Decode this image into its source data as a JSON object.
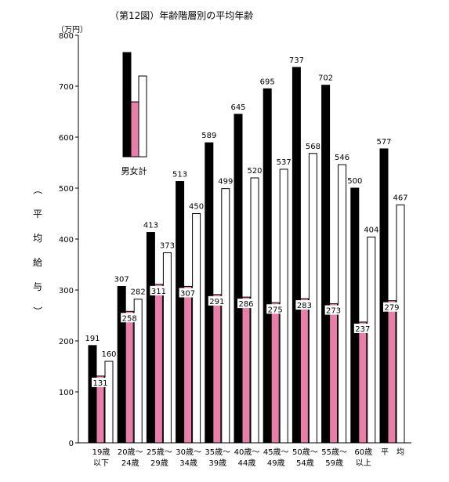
{
  "chart_data": {
    "type": "bar",
    "title": "（第12図）年齢階層別の平均年齢",
    "y_unit": "（万円）",
    "ylabel": [
      "（",
      "平",
      "均",
      "給",
      "与",
      "）"
    ],
    "ylim": [
      0,
      800
    ],
    "yticks": [
      0,
      100,
      200,
      300,
      400,
      500,
      600,
      700,
      800
    ],
    "legend": {
      "label": "男女計",
      "placement": "top-left"
    },
    "categories": [
      [
        "19歳",
        "以下"
      ],
      [
        "20歳～",
        "24歳"
      ],
      [
        "25歳～",
        "29歳"
      ],
      [
        "30歳～",
        "34歳"
      ],
      [
        "35歳～",
        "39歳"
      ],
      [
        "40歳～",
        "44歳"
      ],
      [
        "45歳～",
        "49歳"
      ],
      [
        "50歳～",
        "54歳"
      ],
      [
        "55歳～",
        "59歳"
      ],
      [
        "60歳",
        "以上"
      ],
      [
        "平　均",
        ""
      ]
    ],
    "series": [
      {
        "color": "#000000",
        "values": [
          191,
          307,
          413,
          513,
          589,
          645,
          695,
          737,
          702,
          500,
          577
        ]
      },
      {
        "color": "#e87fa8",
        "values": [
          131,
          258,
          311,
          307,
          291,
          286,
          275,
          283,
          273,
          237,
          279
        ]
      },
      {
        "color": "#ffffff",
        "values": [
          160,
          282,
          373,
          450,
          499,
          520,
          537,
          568,
          546,
          404,
          467
        ]
      }
    ],
    "grid": false
  }
}
